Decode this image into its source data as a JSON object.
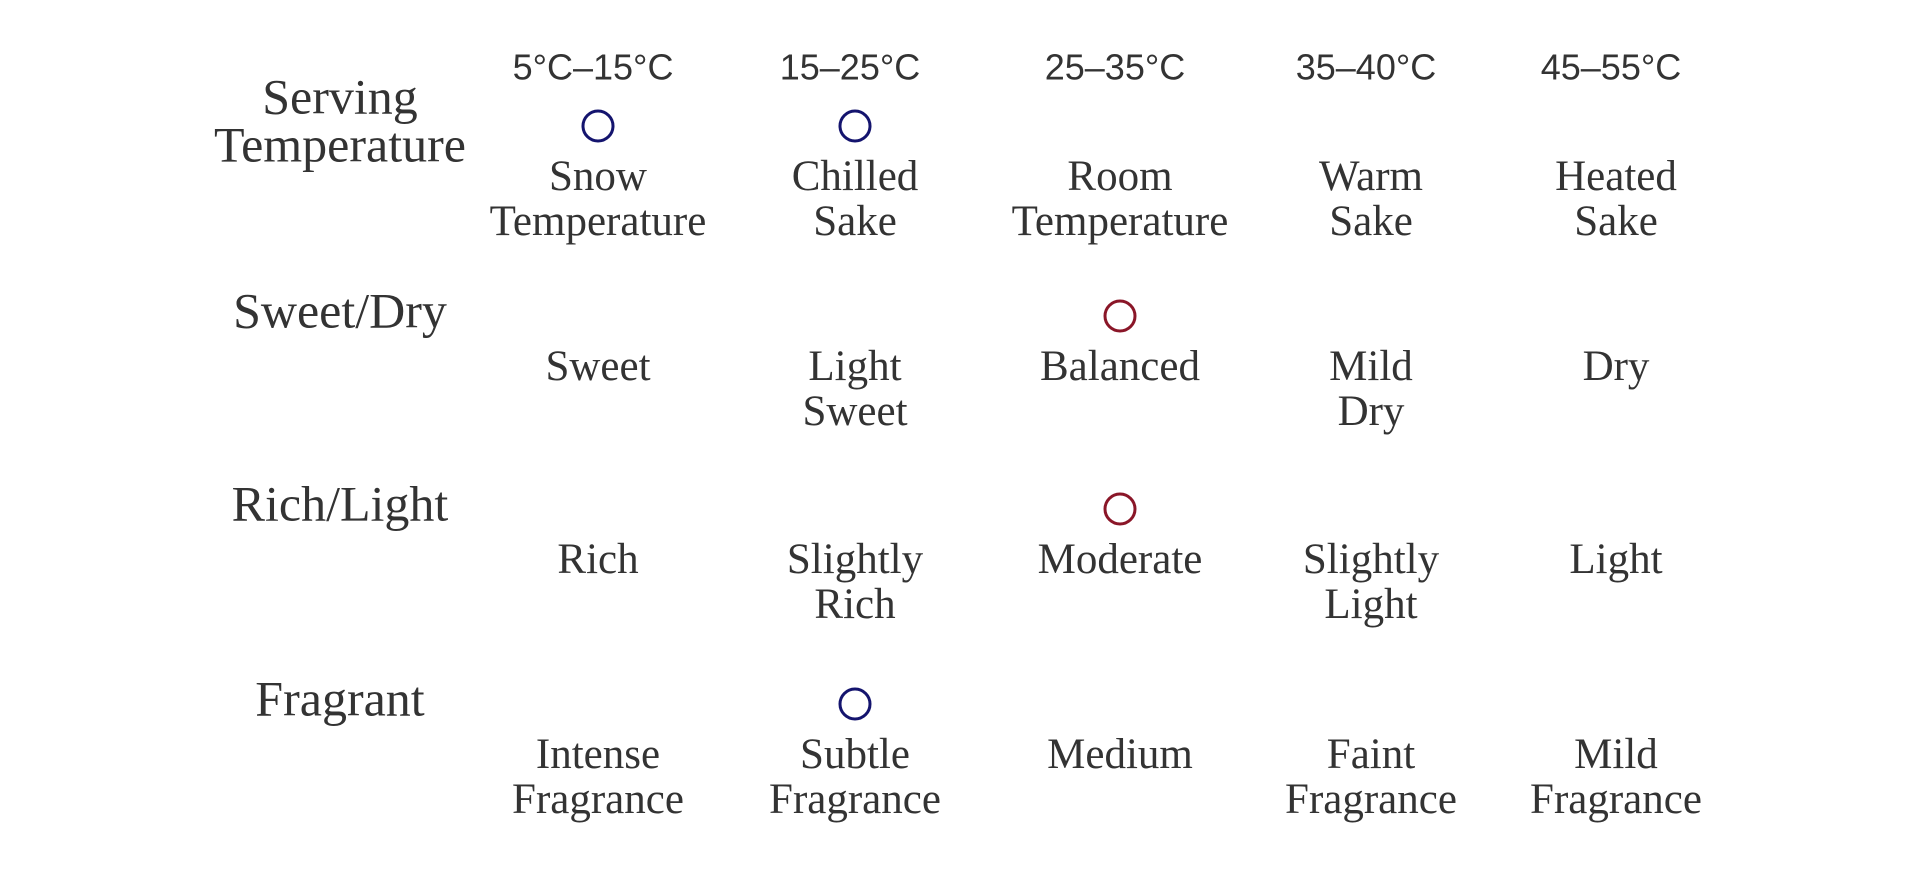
{
  "scales": [
    {
      "label": [
        "Serving",
        "Temperature"
      ],
      "temperatures": [
        "5°C–15°C",
        "15–25°C",
        "25–35°C",
        "35–40°C",
        "45–55°C"
      ],
      "stops": [
        [
          "Snow",
          "Temperature"
        ],
        [
          "Chilled",
          "Sake"
        ],
        [
          "Room",
          "Temperature"
        ],
        [
          "Warm",
          "Sake"
        ],
        [
          "Heated",
          "Sake"
        ]
      ],
      "selected": [
        0,
        1
      ],
      "marker_color": "#14146e"
    },
    {
      "label": [
        "Sweet/Dry"
      ],
      "stops": [
        [
          "Sweet"
        ],
        [
          "Light",
          "Sweet"
        ],
        [
          "Balanced"
        ],
        [
          "Mild",
          "Dry"
        ],
        [
          "Dry"
        ]
      ],
      "selected": [
        2
      ],
      "marker_color": "#8a1628"
    },
    {
      "label": [
        "Rich/Light"
      ],
      "stops": [
        [
          "Rich"
        ],
        [
          "Slightly",
          "Rich"
        ],
        [
          "Moderate"
        ],
        [
          "Slightly",
          "Light"
        ],
        [
          "Light"
        ]
      ],
      "selected": [
        2
      ],
      "marker_color": "#8a1628"
    },
    {
      "label": [
        "Fragrant"
      ],
      "stops": [
        [
          "Intense",
          "Fragrance"
        ],
        [
          "Subtle",
          "Fragrance"
        ],
        [
          "Medium"
        ],
        [
          "Faint",
          "Fragrance"
        ],
        [
          "Mild",
          "Fragrance"
        ]
      ],
      "selected": [
        1
      ],
      "marker_color": "#14146e"
    }
  ]
}
